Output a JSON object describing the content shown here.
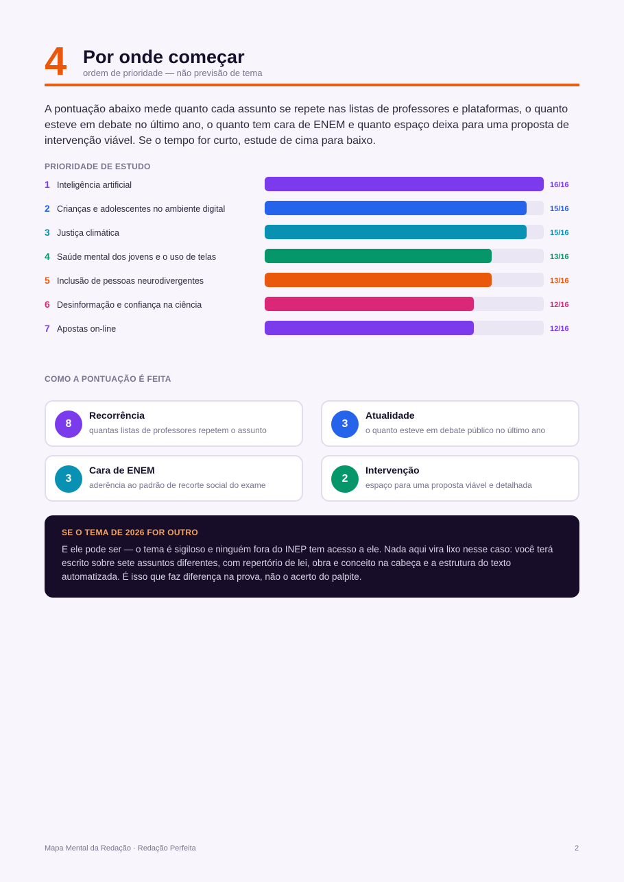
{
  "header": {
    "number": "4",
    "title": "Por onde começar",
    "subtitle": "ordem de prioridade — não previsão de tema"
  },
  "intro": "A pontuação abaixo mede quanto cada assunto se repete nas listas de professores e plataformas, o quanto esteve em debate no último ano, o quanto tem cara de ENEM e quanto espaço deixa para uma proposta de intervenção viável. Se o tempo for curto, estude de cima para baixo.",
  "priority": {
    "label": "PRIORIDADE DE ESTUDO",
    "max": 16,
    "items": [
      {
        "rank": "1",
        "name": "Inteligência artificial",
        "score": 16,
        "score_label": "16/16",
        "color": "#7c3aed"
      },
      {
        "rank": "2",
        "name": "Crianças e adolescentes no ambiente digital",
        "score": 15,
        "score_label": "15/16",
        "color": "#2563eb"
      },
      {
        "rank": "3",
        "name": "Justiça climática",
        "score": 15,
        "score_label": "15/16",
        "color": "#0891b2"
      },
      {
        "rank": "4",
        "name": "Saúde mental dos jovens e o uso de telas",
        "score": 13,
        "score_label": "13/16",
        "color": "#059669"
      },
      {
        "rank": "5",
        "name": "Inclusão de pessoas neurodivergentes",
        "score": 13,
        "score_label": "13/16",
        "color": "#ea580c"
      },
      {
        "rank": "6",
        "name": "Desinformação e confiança na ciência",
        "score": 12,
        "score_label": "12/16",
        "color": "#db2777"
      },
      {
        "rank": "7",
        "name": "Apostas on-line",
        "score": 12,
        "score_label": "12/16",
        "color": "#7c3aed"
      }
    ]
  },
  "scoring": {
    "label": "COMO A PONTUAÇÃO É FEITA",
    "cards": [
      {
        "value": "8",
        "title": "Recorrência",
        "desc": "quantas listas de professores repetem o assunto",
        "color": "#7c3aed"
      },
      {
        "value": "3",
        "title": "Atualidade",
        "desc": "o quanto esteve em debate público no último ano",
        "color": "#2563eb"
      },
      {
        "value": "3",
        "title": "Cara de ENEM",
        "desc": "aderência ao padrão de recorte social do exame",
        "color": "#0891b2"
      },
      {
        "value": "2",
        "title": "Intervenção",
        "desc": "espaço para uma proposta viável e detalhada",
        "color": "#059669"
      }
    ]
  },
  "note": {
    "title": "SE O TEMA DE 2026 FOR OUTRO",
    "text": "E ele pode ser — o tema é sigiloso e ninguém fora do INEP tem acesso a ele. Nada aqui vira lixo nesse caso: você terá escrito sobre sete assuntos diferentes, com repertório de lei, obra e conceito na cabeça e a estrutura do texto automatizada. É isso que faz diferença na prova, não o acerto do palpite."
  },
  "footer": {
    "left": "Mapa Mental da Redação · Redação Perfeita",
    "page": "2"
  }
}
